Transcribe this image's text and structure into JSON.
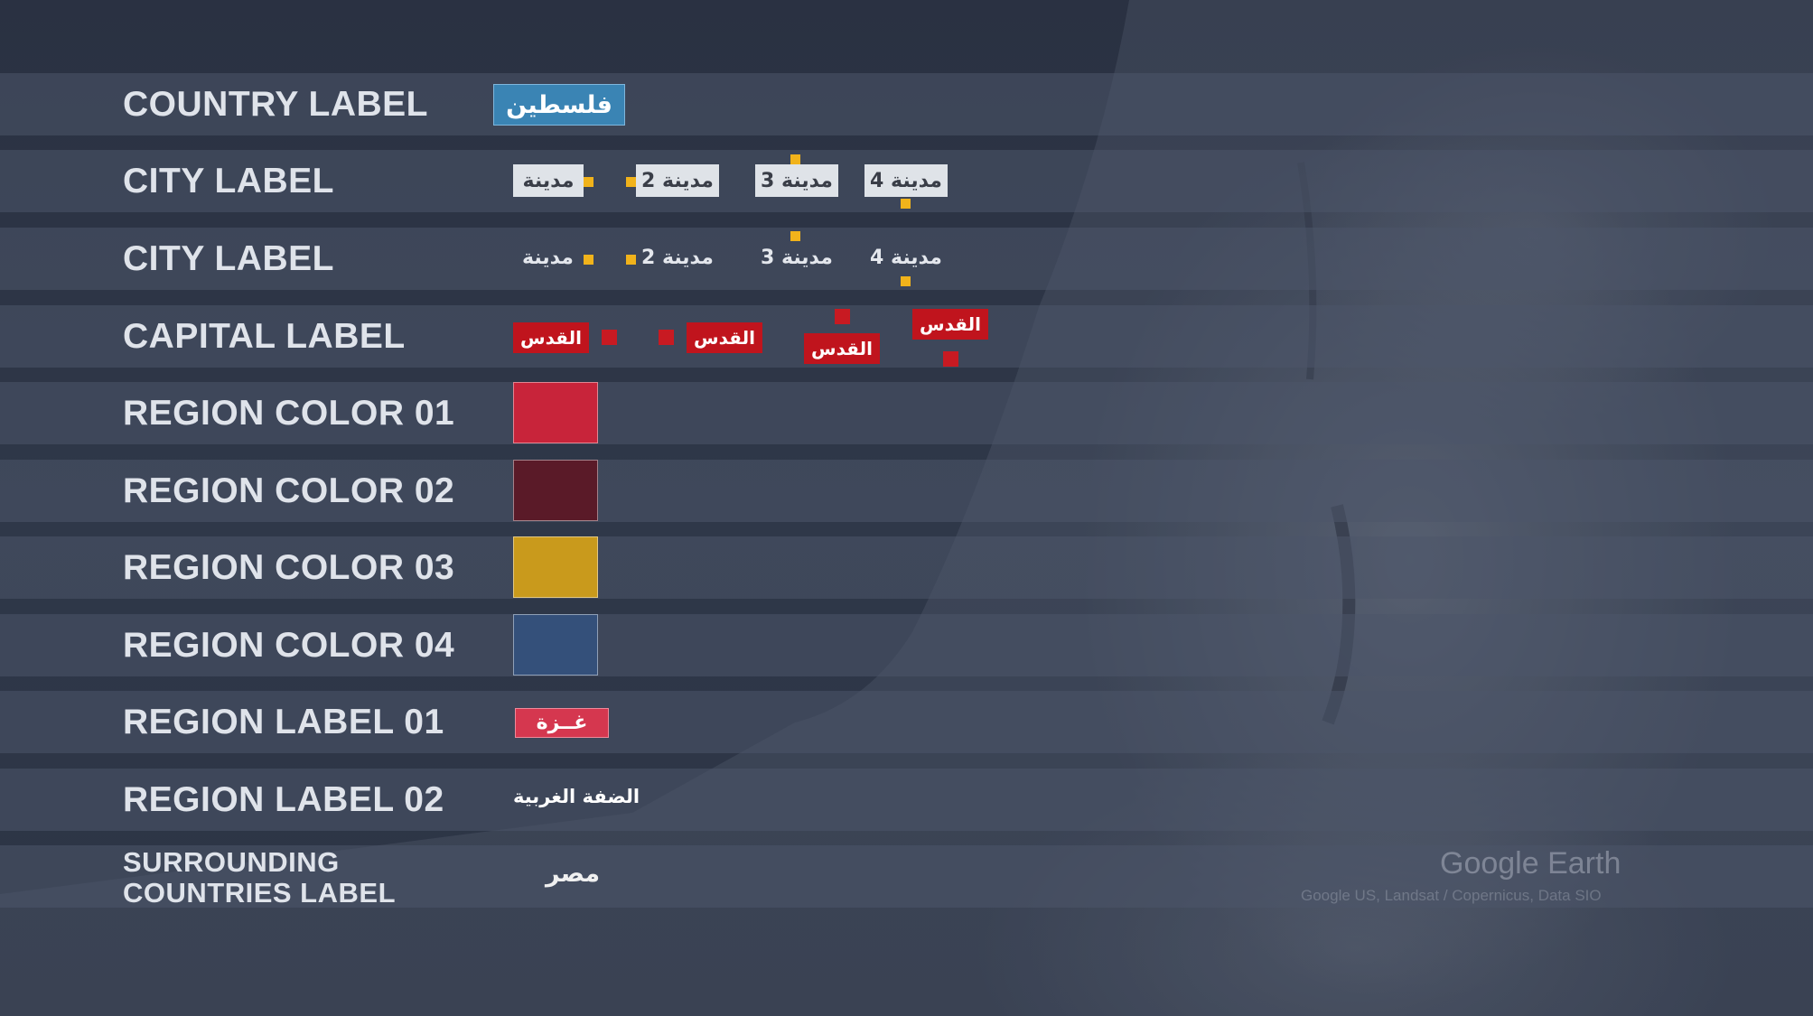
{
  "rows": [
    {
      "label": "COUNTRY LABEL"
    },
    {
      "label": "CITY LABEL"
    },
    {
      "label": "CITY LABEL"
    },
    {
      "label": "CAPITAL LABEL"
    },
    {
      "label": "REGION COLOR 01"
    },
    {
      "label": "REGION COLOR 02"
    },
    {
      "label": "REGION COLOR 03"
    },
    {
      "label": "REGION COLOR 04"
    },
    {
      "label": "REGION LABEL 01"
    },
    {
      "label": "REGION LABEL 02"
    },
    {
      "label_line1": "SURROUNDING",
      "label_line2": "COUNTRIES LABEL"
    }
  ],
  "country_label": "فلسطين",
  "city_labels": [
    "مدينة",
    "مدينة 2",
    "مدينة 3",
    "مدينة 4"
  ],
  "capital_label": "القدس",
  "region_colors": {
    "color_01": "#c8243a",
    "color_02": "#5a1a28",
    "color_03": "#c99a1c",
    "color_04": "#34507a"
  },
  "marker_colors": {
    "city": "#f1b31b",
    "capital": "#c81a22"
  },
  "region_label_01": "غــزة",
  "region_label_02": "الضفة الغربية",
  "surrounding_country": "مصر",
  "watermark": {
    "logo": "Google Earth",
    "credit": "Google US, Landsat / Copernicus, Data SIO"
  }
}
